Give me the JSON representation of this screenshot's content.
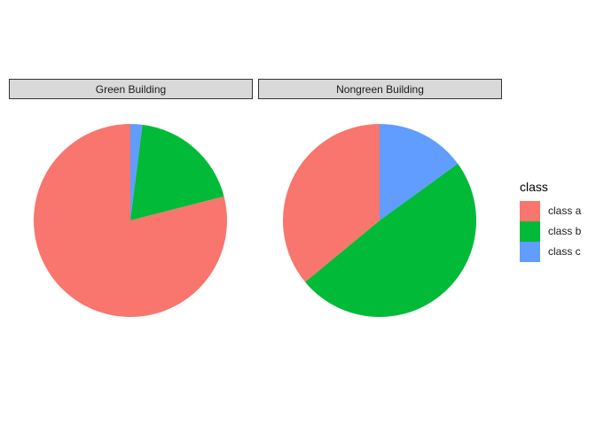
{
  "chart_data": {
    "type": "pie",
    "panels": [
      {
        "title": "Green Building",
        "slices": [
          {
            "label": "class a",
            "value": 0.79
          },
          {
            "label": "class b",
            "value": 0.19
          },
          {
            "label": "class c",
            "value": 0.02
          }
        ]
      },
      {
        "title": "Nongreen Building",
        "slices": [
          {
            "label": "class a",
            "value": 0.36
          },
          {
            "label": "class b",
            "value": 0.49
          },
          {
            "label": "class c",
            "value": 0.15
          }
        ]
      }
    ],
    "legend": {
      "title": "class",
      "position": "right",
      "entries": [
        {
          "label": "class a",
          "color": "#F8766D"
        },
        {
          "label": "class b",
          "color": "#00BA38"
        },
        {
          "label": "class c",
          "color": "#619CFF"
        }
      ]
    }
  }
}
